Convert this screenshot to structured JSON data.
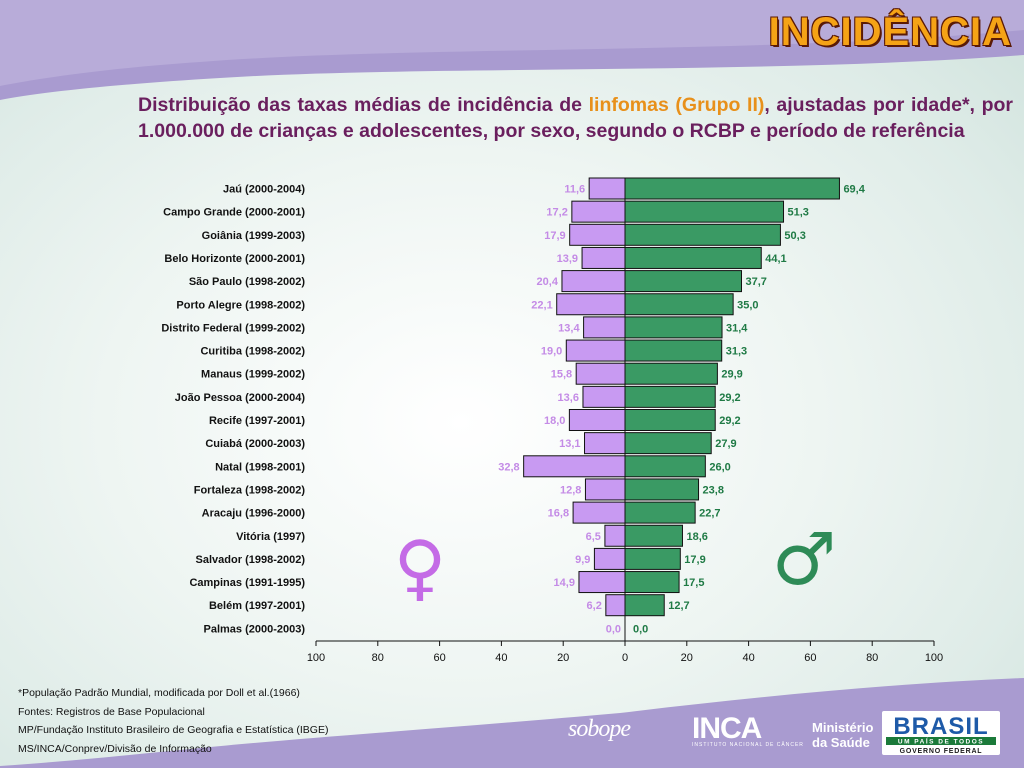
{
  "title": "INCIDÊNCIA",
  "subtitle": {
    "part1": "Distribuição das taxas médias de incidência de ",
    "highlight": "linfomas (Grupo II)",
    "part2": ", ajustadas por idade*, por 1.000.000 de crianças e adolescentes, por sexo, segundo o RCBP e período de referência"
  },
  "chart_data": {
    "type": "bar",
    "orientation": "horizontal-butterfly",
    "categories": [
      "Jaú (2000-2004)",
      "Campo Grande (2000-2001)",
      "Goiânia (1999-2003)",
      "Belo Horizonte (2000-2001)",
      "São Paulo (1998-2002)",
      "Porto Alegre (1998-2002)",
      "Distrito Federal (1999-2002)",
      "Curitiba (1998-2002)",
      "Manaus (1999-2002)",
      "João Pessoa (2000-2004)",
      "Recife (1997-2001)",
      "Cuiabá (2000-2003)",
      "Natal (1998-2001)",
      "Fortaleza (1998-2002)",
      "Aracaju (1996-2000)",
      "Vitória (1997)",
      "Salvador (1998-2002)",
      "Campinas (1991-1995)",
      "Belém (1997-2001)",
      "Palmas (2000-2003)"
    ],
    "series": [
      {
        "symbol": "♀",
        "color": "#c89af2",
        "label_color": "#c48be6",
        "values": [
          11.6,
          17.2,
          17.9,
          13.9,
          20.4,
          22.1,
          13.4,
          19.0,
          15.8,
          13.6,
          18.0,
          13.1,
          32.8,
          12.8,
          16.8,
          6.5,
          9.9,
          14.9,
          6.2,
          0.0
        ],
        "labels": [
          "11,6",
          "17,2",
          "17,9",
          "13,9",
          "20,4",
          "22,1",
          "13,4",
          "19,0",
          "15,8",
          "13,6",
          "18,0",
          "13,1",
          "32,8",
          "12,8",
          "16,8",
          "6,5",
          "9,9",
          "14,9",
          "6,2",
          "0,0"
        ]
      },
      {
        "symbol": "♂",
        "color": "#3a9a64",
        "label_color": "#1f7a45",
        "values": [
          69.4,
          51.3,
          50.3,
          44.1,
          37.7,
          35.0,
          31.4,
          31.3,
          29.9,
          29.2,
          29.2,
          27.9,
          26.0,
          23.8,
          22.7,
          18.6,
          17.9,
          17.5,
          12.7,
          0.0
        ],
        "labels": [
          "69,4",
          "51,3",
          "50,3",
          "44,1",
          "37,7",
          "35,0",
          "31,4",
          "31,3",
          "29,9",
          "29,2",
          "29,2",
          "27,9",
          "26,0",
          "23,8",
          "22,7",
          "18,6",
          "17,9",
          "17,5",
          "12,7",
          "0,0"
        ]
      }
    ],
    "xlim": [
      -100,
      100
    ],
    "xticks": [
      "100",
      "80",
      "60",
      "40",
      "20",
      "0",
      "20",
      "40",
      "60",
      "80",
      "100"
    ],
    "grid": false,
    "legend": "symbols ♀ (left) and ♂ (right)"
  },
  "footnotes": [
    "*População Padrão Mundial, modificada por Doll et al.(1966)",
    "Fontes: Registros de Base Populacional",
    "MP/Fundação Instituto Brasileiro de Geografia e Estatística (IBGE)",
    "MS/INCA/Conprev/Divisão de Informação"
  ],
  "logos": {
    "sobope": "sobope",
    "inca": "INCA",
    "inca_sub": "INSTITUTO NACIONAL DE CÂNCER",
    "ministerio_line1": "Ministério",
    "ministerio_line2": "da Saúde",
    "brasil": "BRASIL",
    "brasil_tagline": "UM PAÍS DE TODOS",
    "brasil_gov": "GOVERNO FEDERAL"
  },
  "colors": {
    "band": "#a99bd0",
    "title": "#f5a316",
    "subtitle": "#6a1f5e",
    "highlight": "#e8901a"
  }
}
